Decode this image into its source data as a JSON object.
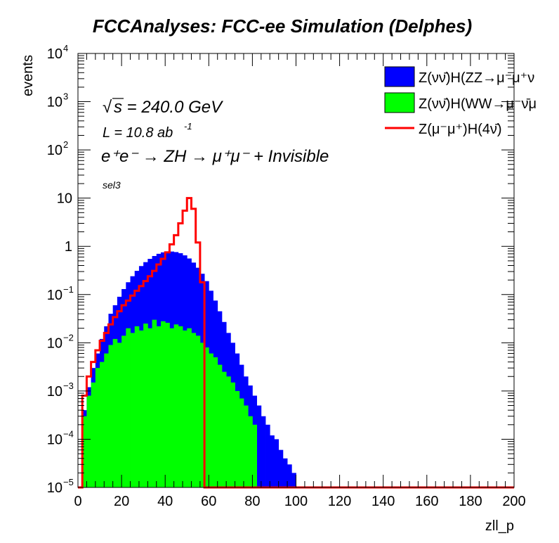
{
  "chart_data": {
    "type": "histogram",
    "title": "FCCAnalyses: FCC-ee Simulation (Delphes)",
    "xlabel": "zll_p",
    "ylabel": "events",
    "xlim": [
      0,
      200
    ],
    "ylim": [
      1e-05,
      10000
    ],
    "yscale": "log",
    "x_ticks": [
      "0",
      "20",
      "40",
      "60",
      "80",
      "100",
      "120",
      "140",
      "160",
      "180",
      "200"
    ],
    "y_ticks": [
      {
        "value": 1e-05,
        "base": "10",
        "exp": "−5"
      },
      {
        "value": 0.0001,
        "base": "10",
        "exp": "−4"
      },
      {
        "value": 0.001,
        "base": "10",
        "exp": "−3"
      },
      {
        "value": 0.01,
        "base": "10",
        "exp": "−2"
      },
      {
        "value": 0.1,
        "base": "10",
        "exp": "−1"
      },
      {
        "value": 1,
        "base": "1",
        "exp": ""
      },
      {
        "value": 10,
        "base": "10",
        "exp": ""
      },
      {
        "value": 100,
        "base": "10",
        "exp": "2"
      },
      {
        "value": 1000,
        "base": "10",
        "exp": "3"
      },
      {
        "value": 10000,
        "base": "10",
        "exp": "4"
      }
    ],
    "annotations": {
      "sqrt_s_prefix": "√",
      "sqrt_s": "s = 240.0 GeV",
      "lumi": "L = 10.8 ab",
      "lumi_exp": "-1",
      "process": "e⁺e⁻ → ZH → μ⁺μ⁻ + Invisible",
      "selection": "sel3"
    },
    "legend": {
      "position": "top-right",
      "entries": [
        {
          "label": "Z(νν̄)H(ZZ→μ⁻μ⁺ν",
          "style": "fill",
          "color": "#0000ff"
        },
        {
          "label": "Z(νν̄)H(WW→μ⁻ν̄μ",
          "style": "fill",
          "color": "#00ff00"
        },
        {
          "label": "Z(μ⁻μ⁺)H(4ν̄)",
          "style": "line",
          "color": "#ff0000"
        }
      ]
    },
    "bin_width": 1,
    "series": [
      {
        "name": "Z(νν̄)H(ZZ→μ⁻μ⁺ν",
        "style": "stacked-fill",
        "color": "#0000ff",
        "x": [
          0,
          2,
          4,
          6,
          8,
          10,
          12,
          14,
          16,
          18,
          20,
          22,
          24,
          26,
          28,
          30,
          32,
          34,
          36,
          38,
          40,
          42,
          44,
          46,
          48,
          50,
          52,
          54,
          56,
          58,
          60,
          62,
          64,
          66,
          68,
          70,
          72,
          74,
          76,
          78,
          80,
          82,
          84,
          86,
          88,
          90,
          92,
          94,
          96,
          98
        ],
        "values": [
          1e-05,
          0.0004,
          0.0012,
          0.003,
          0.006,
          0.012,
          0.022,
          0.04,
          0.06,
          0.09,
          0.13,
          0.18,
          0.24,
          0.31,
          0.39,
          0.47,
          0.55,
          0.63,
          0.7,
          0.75,
          0.78,
          0.78,
          0.76,
          0.72,
          0.65,
          0.56,
          0.46,
          0.36,
          0.27,
          0.19,
          0.12,
          0.075,
          0.045,
          0.027,
          0.016,
          0.01,
          0.006,
          0.0035,
          0.002,
          0.0013,
          0.0008,
          0.0005,
          0.0003,
          0.0002,
          0.00012,
          0.0001,
          6e-05,
          4e-05,
          3e-05,
          2e-05
        ]
      },
      {
        "name": "Z(νν̄)H(WW→μ⁻ν̄μ",
        "style": "stacked-fill",
        "color": "#00ff00",
        "x": [
          0,
          2,
          4,
          6,
          8,
          10,
          12,
          14,
          16,
          18,
          20,
          22,
          24,
          26,
          28,
          30,
          32,
          34,
          36,
          38,
          40,
          42,
          44,
          46,
          48,
          50,
          52,
          54,
          56,
          58,
          60,
          62,
          64,
          66,
          68,
          70,
          72,
          74,
          76,
          78,
          80,
          82,
          84,
          86,
          88,
          90,
          92,
          94,
          96,
          98
        ],
        "values": [
          1e-05,
          0.0003,
          0.0008,
          0.0015,
          0.003,
          0.004,
          0.006,
          0.009,
          0.012,
          0.01,
          0.014,
          0.02,
          0.016,
          0.022,
          0.018,
          0.025,
          0.02,
          0.03,
          0.022,
          0.028,
          0.026,
          0.02,
          0.024,
          0.022,
          0.018,
          0.02,
          0.016,
          0.014,
          0.01,
          0.008,
          0.006,
          0.005,
          0.0035,
          0.0025,
          0.002,
          0.0015,
          0.001,
          0.0007,
          0.0005,
          0.0003,
          0.0002,
          1e-05,
          1e-05,
          1e-05,
          1e-05,
          1e-05,
          1e-05,
          1e-05,
          1e-05,
          1e-05
        ]
      },
      {
        "name": "Z(μ⁻μ⁺)H(4ν̄)",
        "style": "step-line",
        "color": "#ff0000",
        "x": [
          0,
          2,
          4,
          6,
          8,
          10,
          12,
          14,
          16,
          18,
          20,
          22,
          24,
          26,
          28,
          30,
          32,
          34,
          36,
          38,
          40,
          42,
          44,
          46,
          48,
          50,
          52,
          54,
          56,
          58,
          60,
          62,
          64,
          66,
          68,
          70,
          72,
          74,
          76,
          78,
          80,
          82,
          84,
          86,
          88,
          90,
          92,
          94,
          96,
          98
        ],
        "values": [
          1e-05,
          0.0008,
          0.002,
          0.004,
          0.007,
          0.011,
          0.016,
          0.024,
          0.034,
          0.045,
          0.06,
          0.075,
          0.095,
          0.12,
          0.15,
          0.19,
          0.24,
          0.31,
          0.42,
          0.55,
          0.75,
          1.1,
          1.7,
          3.0,
          5.5,
          10.0,
          6.0,
          1.2,
          0.18,
          1e-05,
          1e-05,
          1e-05,
          1e-05,
          1e-05,
          1e-05,
          1e-05,
          1e-05,
          1e-05,
          1e-05,
          1e-05,
          1e-05,
          1e-05,
          1e-05,
          1e-05,
          1e-05,
          1e-05,
          1e-05,
          1e-05,
          1e-05,
          1e-05
        ]
      }
    ]
  }
}
